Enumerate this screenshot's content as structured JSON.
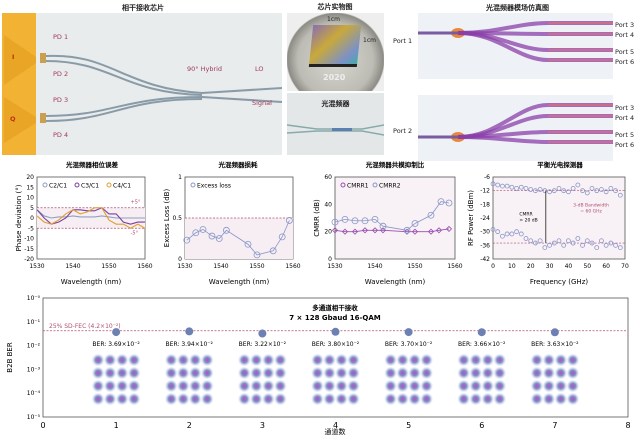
{
  "panels": {
    "chip": {
      "title": "相干接收芯片",
      "labels": {
        "pd1": "PD 1",
        "pd2": "PD 2",
        "pd3": "PD 3",
        "pd4": "PD 4",
        "i": "I",
        "q": "Q",
        "hybrid": "90° Hybrid",
        "lo": "LO",
        "signal": "Signal"
      }
    },
    "photo": {
      "title": "芯片实物图",
      "dim1": "1cm",
      "dim2": "1cm",
      "coin_text": "2020"
    },
    "hybrid_photo": {
      "title": "光混频器"
    },
    "simulation": {
      "title": "光混频器模场仿真图",
      "top": {
        "input": "Port 1",
        "outputs": [
          "Port 3",
          "Port 4",
          "Port 5",
          "Port 6"
        ]
      },
      "bottom": {
        "input": "Port 2",
        "outputs": [
          "Port 3",
          "Port 4",
          "Port 5",
          "Port 6"
        ]
      }
    }
  },
  "colors": {
    "pad": "#f2b233",
    "label": "#a0385a",
    "marker": "#8a96c8",
    "purple": "#7a3fa0",
    "orange": "#e0a030",
    "grey": "#8fa0c0",
    "ref": "#b05070"
  },
  "chart_data": [
    {
      "id": "phase",
      "type": "line",
      "title": "光混频器相位误差",
      "xlabel": "Wavelength (nm)",
      "ylabel": "Phase deviation (°)",
      "xlim": [
        1530,
        1560
      ],
      "ylim": [
        -20,
        20
      ],
      "xticks": [
        1530,
        1540,
        1550,
        1560
      ],
      "yticks": [
        -20,
        -15,
        -10,
        -5,
        0,
        5,
        10,
        15,
        20
      ],
      "annotations": [
        "+5°",
        "-5°"
      ],
      "ref_lines": [
        5,
        -5
      ],
      "series": [
        {
          "name": "C2/C1",
          "color": "#8fa0c0",
          "x": [
            1530,
            1532,
            1534,
            1536,
            1538,
            1540,
            1542,
            1544,
            1546,
            1548,
            1550,
            1552,
            1554,
            1556,
            1558,
            1560
          ],
          "y": [
            4,
            1,
            0,
            0.5,
            0.5,
            1,
            0.5,
            0.5,
            0.5,
            1,
            0.5,
            0,
            0,
            0,
            0,
            0
          ]
        },
        {
          "name": "C3/C1",
          "color": "#7a3fa0",
          "x": [
            1530,
            1532,
            1534,
            1536,
            1538,
            1540,
            1542,
            1544,
            1546,
            1548,
            1550,
            1552,
            1554,
            1556,
            1558,
            1560
          ],
          "y": [
            4,
            0,
            -3,
            -2,
            0,
            4,
            4,
            3.5,
            3.5,
            5,
            2,
            2,
            -2,
            -3,
            -2,
            -2
          ]
        },
        {
          "name": "C4/C1",
          "color": "#e0a030",
          "x": [
            1530,
            1532,
            1534,
            1536,
            1538,
            1540,
            1542,
            1544,
            1546,
            1548,
            1550,
            1552,
            1554,
            1556,
            1558,
            1560
          ],
          "y": [
            1,
            -2,
            -3,
            -1,
            2,
            4,
            2,
            3,
            5,
            5,
            -1,
            -3,
            -3,
            -5,
            -3,
            -5
          ]
        }
      ]
    },
    {
      "id": "loss",
      "type": "line",
      "title": "光混频器损耗",
      "xlabel": "Wavelength (nm)",
      "ylabel": "Excess Loss (dB)",
      "xlim": [
        1530,
        1560
      ],
      "ylim": [
        0,
        1
      ],
      "xticks": [
        1530,
        1540,
        1550,
        1560
      ],
      "yticks": [
        0,
        0.5,
        1
      ],
      "ref_lines": [
        0.5
      ],
      "series": [
        {
          "name": "Excess loss",
          "color": "#8a96c8",
          "x": [
            1530.5,
            1533,
            1535,
            1537.5,
            1539.5,
            1541.5,
            1547.5,
            1550,
            1554.5,
            1557,
            1559
          ],
          "y": [
            0.23,
            0.32,
            0.36,
            0.28,
            0.25,
            0.35,
            0.18,
            0.05,
            0.1,
            0.27,
            0.47
          ]
        }
      ]
    },
    {
      "id": "cmrr",
      "type": "line",
      "title": "光混频器共模抑制比",
      "xlabel": "Wavelength (nm)",
      "ylabel": "CMRR (dB)",
      "xlim": [
        1530,
        1560
      ],
      "ylim": [
        0,
        60
      ],
      "xticks": [
        1530,
        1540,
        1550,
        1560
      ],
      "yticks": [
        0,
        20,
        40,
        60
      ],
      "series": [
        {
          "name": "CMRR1",
          "color": "#9a4fb0",
          "x": [
            1530,
            1532.5,
            1535,
            1537.5,
            1540,
            1542,
            1548,
            1550,
            1554,
            1556,
            1558.5
          ],
          "y": [
            21,
            20,
            20,
            21,
            21,
            21,
            20,
            20,
            20,
            21,
            22
          ]
        },
        {
          "name": "CMRR2",
          "color": "#8a96c8",
          "x": [
            1530,
            1532.5,
            1535,
            1537.5,
            1540,
            1542,
            1548,
            1550,
            1554,
            1556.5,
            1558.5
          ],
          "y": [
            27,
            29,
            28,
            28,
            29,
            24,
            21,
            26,
            32,
            42,
            41
          ]
        }
      ]
    },
    {
      "id": "bpd",
      "type": "scatter",
      "title": "平衡光电探测器",
      "xlabel": "Frequency (GHz)",
      "ylabel": "RF Power (dBm)",
      "xlim": [
        0,
        70
      ],
      "ylim": [
        -42,
        -6
      ],
      "xticks": [
        0,
        10,
        20,
        30,
        40,
        50,
        60,
        70
      ],
      "yticks": [
        -42,
        -36,
        -30,
        -24,
        -18,
        -12,
        -6
      ],
      "ref_lines": [
        -12,
        -35
      ],
      "annotations": [
        "CMRR",
        "> 20 dB",
        "3-dB Bandwidth",
        "= 60 GHz"
      ],
      "series": [
        {
          "color": "#8a96c8",
          "x": [
            0,
            2.5,
            5,
            7.5,
            10,
            12.5,
            15,
            17.5,
            20,
            22.5,
            25,
            27.5,
            30,
            32.5,
            35,
            37.5,
            40,
            42.5,
            45,
            47.5,
            50,
            52.5,
            55,
            57.5,
            60,
            62.5,
            65,
            67.5
          ],
          "y": [
            -9,
            -9.5,
            -10,
            -10,
            -10.5,
            -11,
            -10.5,
            -11,
            -11.5,
            -12,
            -11.5,
            -12,
            -12.5,
            -12,
            -11,
            -12,
            -12.5,
            -11,
            -9.5,
            -12,
            -13,
            -11,
            -12,
            -11.5,
            -12.5,
            -11,
            -12,
            -14
          ]
        },
        {
          "color": "#8a96c8",
          "x": [
            0,
            2.5,
            5,
            7.5,
            10,
            12.5,
            15,
            17.5,
            20,
            22.5,
            25,
            27.5,
            30,
            32.5,
            35,
            37.5,
            40,
            42.5,
            45,
            47.5,
            50,
            52.5,
            55,
            57.5,
            60,
            62.5,
            65,
            67.5
          ],
          "y": [
            -29,
            -30,
            -32,
            -31,
            -31,
            -30,
            -31,
            -33,
            -34,
            -35,
            -34,
            -37,
            -36,
            -35,
            -34,
            -36,
            -34,
            -35,
            -33,
            -36,
            -34,
            -35,
            -37,
            -34,
            -36,
            -35,
            -36,
            -37
          ]
        }
      ]
    },
    {
      "id": "ber",
      "type": "scatter",
      "title": "多通道相干接收",
      "subtitle": "7 × 128 Gbaud 16-QAM",
      "xlabel": "通道数",
      "ylabel": "B2B BER",
      "xlim": [
        0,
        8
      ],
      "ylim": [
        1e-05,
        1
      ],
      "yscale": "log",
      "xticks": [
        0,
        1,
        2,
        3,
        4,
        5,
        6,
        7,
        8
      ],
      "yticks": [
        "10⁻⁵",
        "10⁻⁴",
        "10⁻³",
        "10⁻²",
        "10⁻¹",
        "10⁻⁰"
      ],
      "threshold": {
        "label": "25% SD-FEC (4.2×10⁻²)",
        "value": 0.042
      },
      "x": [
        1,
        2,
        3,
        4,
        5,
        6,
        7
      ],
      "y": [
        0.0369,
        0.0394,
        0.0322,
        0.038,
        0.037,
        0.0366,
        0.0363
      ],
      "labels": [
        "BER: 3.69×10⁻²",
        "BER: 3.94×10⁻²",
        "BER: 3.22×10⁻²",
        "BER: 3.80×10⁻²",
        "BER: 3.70×10⁻²",
        "BER: 3.66×10⁻²",
        "BER: 3.63×10⁻²"
      ],
      "constellation": "16-QAM"
    }
  ]
}
